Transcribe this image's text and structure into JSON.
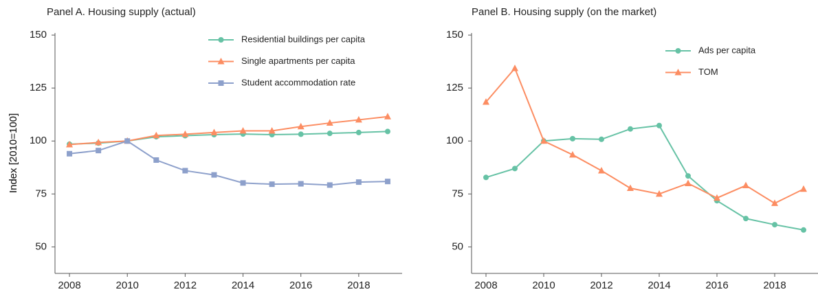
{
  "chart_data": [
    {
      "type": "line",
      "title": "Panel A. Housing supply (actual)",
      "y_label": "Index [2010=100]",
      "x": [
        2008,
        2009,
        2010,
        2011,
        2012,
        2013,
        2014,
        2015,
        2016,
        2017,
        2018,
        2019
      ],
      "series": [
        {
          "name": "Residential buildings per capita",
          "color": "#66c2a5",
          "marker": "circle",
          "values": [
            98.5,
            99,
            100,
            102,
            102.5,
            103,
            103.3,
            103,
            103.2,
            103.6,
            104,
            104.5
          ]
        },
        {
          "name": "Single apartments per capita",
          "color": "#fc8d62",
          "marker": "triangle",
          "values": [
            98.3,
            99.3,
            100,
            102.6,
            103.2,
            104,
            104.8,
            104.8,
            106.8,
            108.5,
            110,
            111.5
          ]
        },
        {
          "name": "Student accommodation rate",
          "color": "#8da0cb",
          "marker": "square",
          "values": [
            94,
            95.5,
            100,
            91,
            86,
            84,
            80.2,
            79.6,
            79.8,
            79.2,
            80.6,
            80.9
          ]
        }
      ],
      "xlim": [
        2007.5,
        2019.5
      ],
      "xticks": [
        2008,
        2010,
        2012,
        2014,
        2016,
        2018
      ],
      "ylim": [
        37.5,
        151
      ],
      "yticks": [
        50,
        75,
        100,
        125,
        150
      ],
      "grid": false,
      "legend": "upper right"
    },
    {
      "type": "line",
      "title": "Panel B. Housing supply (on the market)",
      "y_label": "Index [2010=100]",
      "x": [
        2008,
        2009,
        2010,
        2011,
        2012,
        2013,
        2014,
        2015,
        2016,
        2017,
        2018,
        2019
      ],
      "series": [
        {
          "name": "Ads per capita",
          "color": "#66c2a5",
          "marker": "circle",
          "values": [
            82.8,
            87,
            100,
            101.1,
            100.8,
            105.7,
            107.3,
            83.5,
            71.8,
            63.4,
            60.5,
            58
          ]
        },
        {
          "name": "TOM",
          "color": "#fc8d62",
          "marker": "triangle",
          "values": [
            118.4,
            134.3,
            100,
            93.5,
            86,
            77.7,
            75,
            80,
            73.1,
            79,
            70.6,
            77.3
          ]
        }
      ],
      "xlim": [
        2007.5,
        2019.5
      ],
      "xticks": [
        2008,
        2010,
        2012,
        2014,
        2016,
        2018
      ],
      "ylim": [
        37.5,
        151
      ],
      "yticks": [
        50,
        75,
        100,
        125,
        150
      ],
      "grid": false,
      "legend": "upper right"
    }
  ]
}
